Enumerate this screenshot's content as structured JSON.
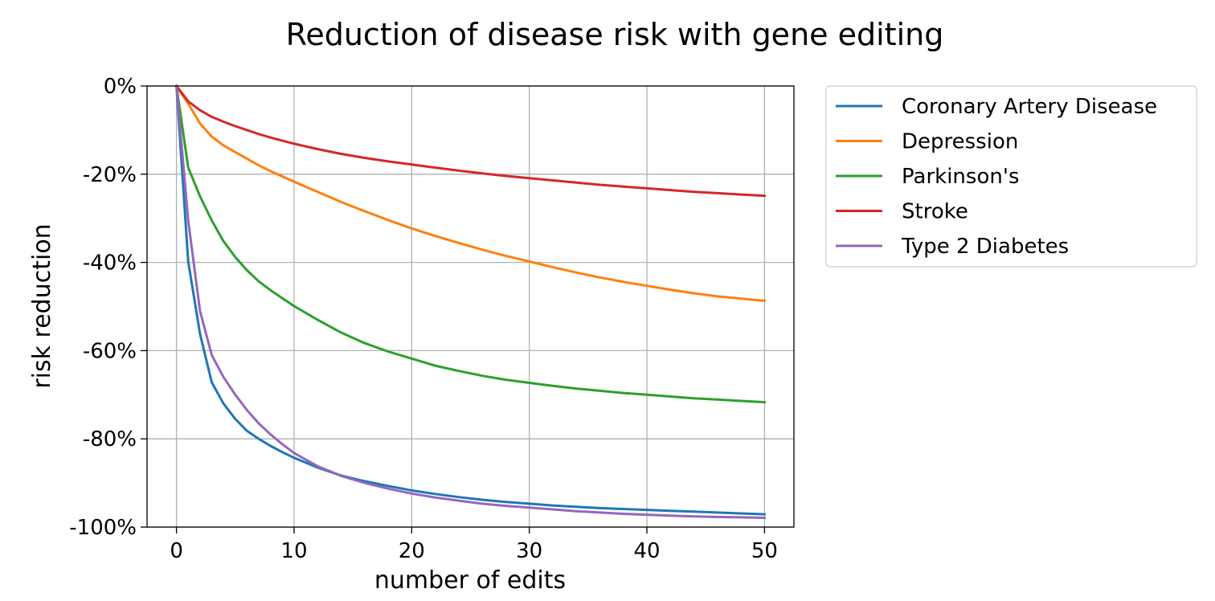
{
  "chart_data": {
    "type": "line",
    "title": "Reduction of disease risk with gene editing",
    "xlabel": "number of edits",
    "ylabel": "risk reduction",
    "xlim": [
      -2.5,
      52.5
    ],
    "ylim": [
      -100,
      0
    ],
    "xticks": [
      0,
      10,
      20,
      30,
      40,
      50
    ],
    "xtick_labels": [
      "0",
      "10",
      "20",
      "30",
      "40",
      "50"
    ],
    "yticks": [
      0,
      -20,
      -40,
      -60,
      -80,
      -100
    ],
    "ytick_labels": [
      "0%",
      "-20%",
      "-40%",
      "-60%",
      "-80%",
      "-100%"
    ],
    "grid": true,
    "legend_position": "outside-right-top",
    "x": [
      0,
      1,
      2,
      3,
      4,
      5,
      6,
      7,
      8,
      9,
      10,
      12,
      14,
      16,
      18,
      20,
      22,
      24,
      26,
      28,
      30,
      32,
      34,
      36,
      38,
      40,
      42,
      44,
      46,
      48,
      50
    ],
    "series": [
      {
        "name": "Coronary Artery Disease",
        "color": "#1f77b4",
        "values": [
          0,
          -39.8,
          -56.2,
          -67.2,
          -72.0,
          -75.5,
          -78.2,
          -80.0,
          -81.6,
          -83.0,
          -84.3,
          -86.5,
          -88.3,
          -89.6,
          -90.7,
          -91.7,
          -92.5,
          -93.2,
          -93.8,
          -94.3,
          -94.7,
          -95.1,
          -95.4,
          -95.7,
          -95.9,
          -96.1,
          -96.3,
          -96.5,
          -96.7,
          -96.9,
          -97.1
        ]
      },
      {
        "name": "Depression",
        "color": "#ff7f0e",
        "values": [
          0,
          -4.0,
          -8.5,
          -11.5,
          -13.5,
          -15.0,
          -16.5,
          -18.0,
          -19.3,
          -20.5,
          -21.7,
          -24.0,
          -26.3,
          -28.4,
          -30.4,
          -32.3,
          -34.0,
          -35.6,
          -37.1,
          -38.5,
          -39.8,
          -41.1,
          -42.3,
          -43.4,
          -44.4,
          -45.3,
          -46.2,
          -47.0,
          -47.7,
          -48.2,
          -48.7
        ]
      },
      {
        "name": "Parkinson's",
        "color": "#2ca02c",
        "values": [
          0,
          -18.5,
          -25.0,
          -30.5,
          -35.2,
          -38.8,
          -41.8,
          -44.3,
          -46.3,
          -48.1,
          -49.9,
          -53.0,
          -55.9,
          -58.3,
          -60.2,
          -61.8,
          -63.4,
          -64.6,
          -65.7,
          -66.6,
          -67.3,
          -68.0,
          -68.6,
          -69.1,
          -69.6,
          -70.0,
          -70.4,
          -70.8,
          -71.1,
          -71.4,
          -71.7
        ]
      },
      {
        "name": "Stroke",
        "color": "#d62728",
        "values": [
          0,
          -3.5,
          -5.5,
          -7.0,
          -8.1,
          -9.1,
          -10.0,
          -10.9,
          -11.7,
          -12.4,
          -13.1,
          -14.3,
          -15.4,
          -16.3,
          -17.1,
          -17.8,
          -18.5,
          -19.2,
          -19.8,
          -20.4,
          -20.9,
          -21.4,
          -21.9,
          -22.4,
          -22.8,
          -23.2,
          -23.6,
          -24.0,
          -24.3,
          -24.6,
          -24.9
        ]
      },
      {
        "name": "Type 2 Diabetes",
        "color": "#9467bd",
        "values": [
          0,
          -30.5,
          -51.0,
          -61.0,
          -66.0,
          -70.0,
          -73.5,
          -76.5,
          -79.0,
          -81.2,
          -83.2,
          -86.2,
          -88.4,
          -90.0,
          -91.3,
          -92.4,
          -93.3,
          -94.0,
          -94.7,
          -95.2,
          -95.6,
          -96.0,
          -96.4,
          -96.7,
          -97.0,
          -97.2,
          -97.4,
          -97.6,
          -97.7,
          -97.8,
          -97.9
        ]
      }
    ]
  }
}
